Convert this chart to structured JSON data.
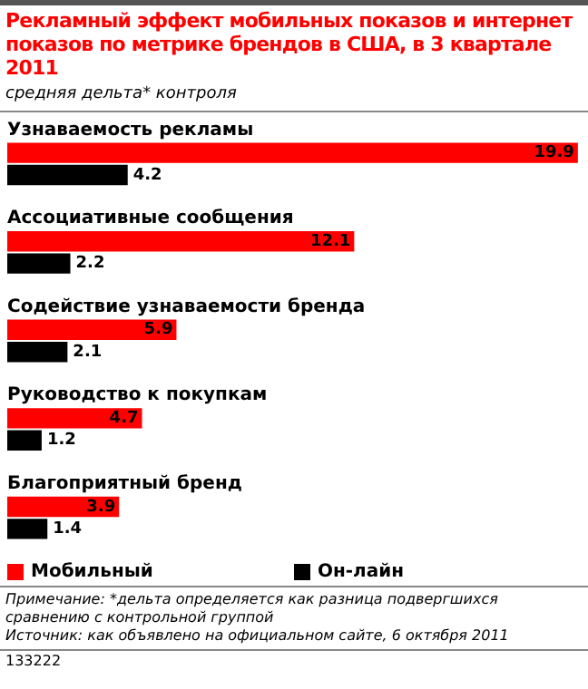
{
  "chart_data": {
    "type": "bar",
    "orientation": "horizontal",
    "title": "Рекламный эффект мобильных показов и интернет показов по метрике брендов в США, в 3 квартале 2011",
    "subtitle": "средняя дельта* контроля",
    "categories": [
      "Узнаваемость рекламы",
      "Ассоциативные сообщения",
      "Содействие узнаваемости бренда",
      "Руководство к покупкам",
      "Благоприятный бренд"
    ],
    "series": [
      {
        "name": "Мобильный",
        "color": "#ff0000",
        "values": [
          19.9,
          12.1,
          5.9,
          4.7,
          3.9
        ]
      },
      {
        "name": "Он-лайн",
        "color": "#000000",
        "values": [
          4.2,
          2.2,
          2.1,
          1.2,
          1.4
        ]
      }
    ],
    "data_labels": true,
    "legend": "bottom",
    "annotations": [
      "Примечание: *дельта определяется как разница подвергшихся сравнению с контрольной группой",
      "Источник: как объявлено на официальном сайте, 6 октября 2011",
      "133222"
    ]
  }
}
